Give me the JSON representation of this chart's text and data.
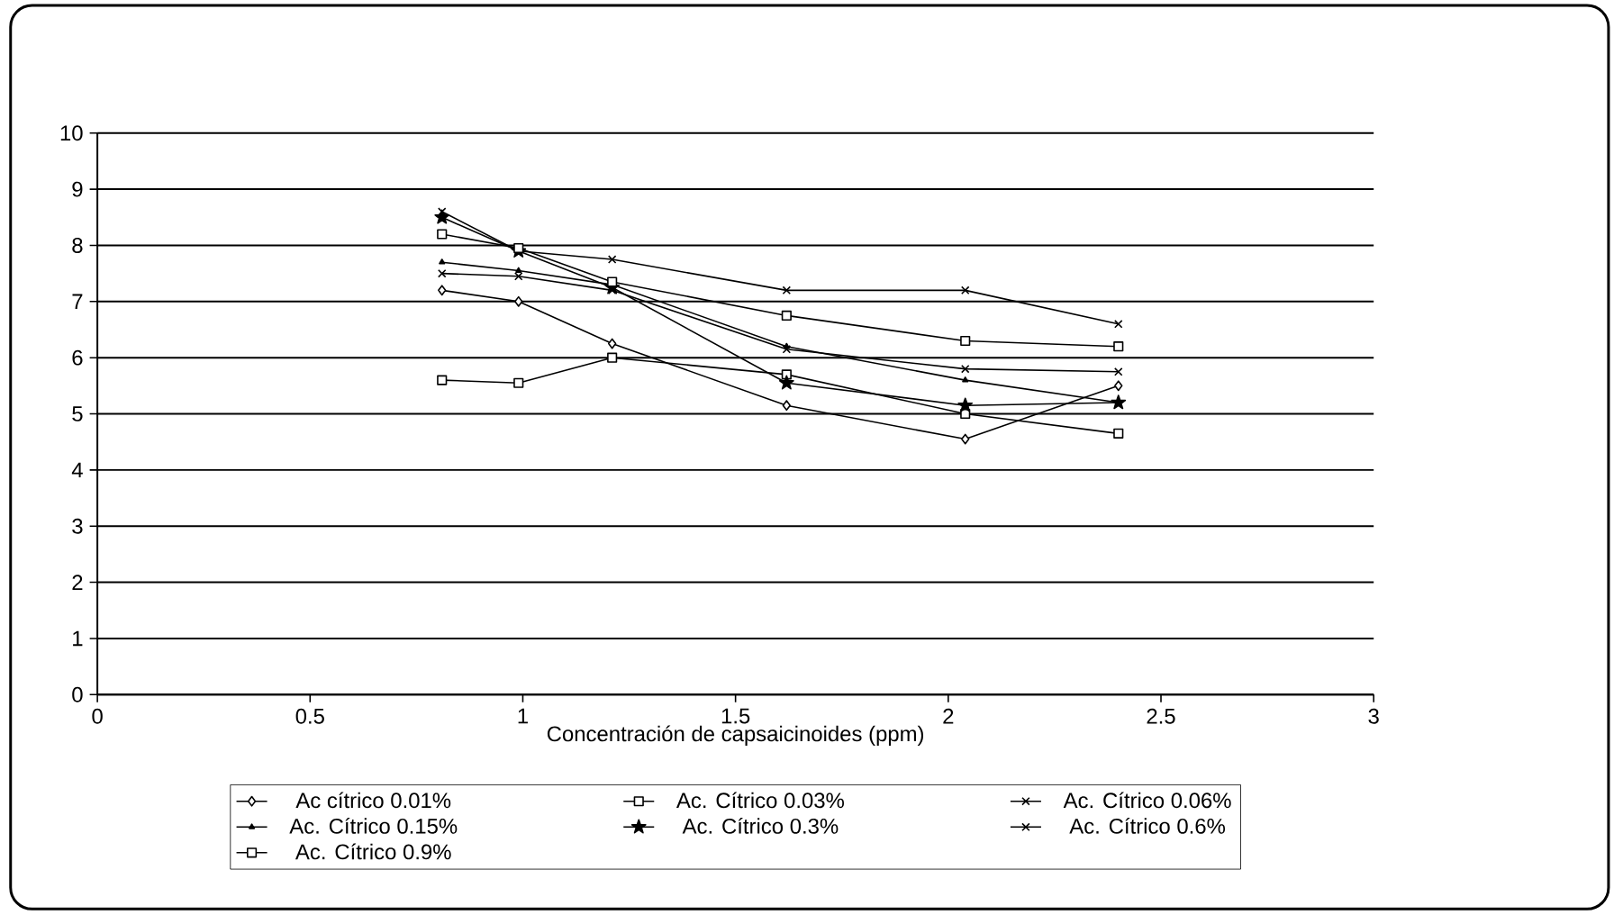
{
  "chart_data": {
    "type": "line",
    "xlabel": "Concentración de capsaicinoides (ppm)",
    "x": [
      0.81,
      0.99,
      1.21,
      1.62,
      2.04,
      2.4
    ],
    "xlim": [
      0,
      3
    ],
    "xticks": [
      0,
      0.5,
      1,
      1.5,
      2,
      2.5,
      3
    ],
    "ylim": [
      0,
      10
    ],
    "yticks": [
      0,
      1,
      2,
      3,
      4,
      5,
      6,
      7,
      8,
      9,
      10
    ],
    "grid": "y",
    "legend": "bottom",
    "series": [
      {
        "name": "Ac cítrico 0.01%",
        "color": "#000000",
        "marker": "diamond",
        "values": [
          7.2,
          7.0,
          6.25,
          5.15,
          4.55,
          5.5
        ]
      },
      {
        "name": "Ac. Cítrico 0.03%",
        "color": "#000000",
        "marker": "square",
        "values": [
          5.6,
          5.55,
          6.0,
          5.7,
          5.0,
          4.65
        ]
      },
      {
        "name": "Ac. Cítrico 0.06%",
        "color": "#000000",
        "marker": "cross",
        "values": [
          7.5,
          7.45,
          7.2,
          6.15,
          5.8,
          5.75
        ]
      },
      {
        "name": "Ac. Cítrico 0.15%",
        "color": "#000000",
        "marker": "triangle",
        "values": [
          7.7,
          7.55,
          7.3,
          6.2,
          5.6,
          5.2
        ]
      },
      {
        "name": "Ac. Cítrico 0.3%",
        "color": "#000000",
        "marker": "star",
        "values": [
          8.5,
          7.9,
          7.25,
          5.55,
          5.15,
          5.2
        ]
      },
      {
        "name": "Ac. Cítrico 0.6%",
        "color": "#000000",
        "marker": "cross",
        "values": [
          8.6,
          7.9,
          7.75,
          7.2,
          7.2,
          6.6
        ]
      },
      {
        "name": "Ac. Cítrico 0.9%",
        "color": "#000000",
        "marker": "square",
        "values": [
          8.2,
          7.95,
          7.35,
          6.75,
          6.3,
          6.2
        ]
      }
    ]
  }
}
